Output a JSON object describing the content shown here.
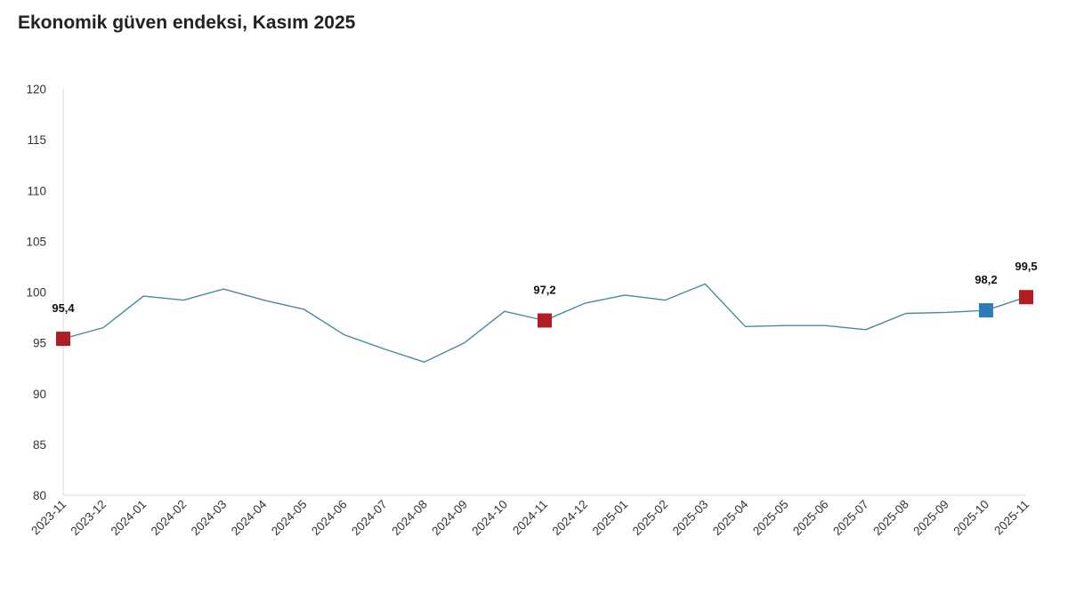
{
  "chart_data": {
    "type": "line",
    "title": "Ekonomik güven endeksi, Kasım 2025",
    "categories": [
      "2023-11",
      "2023-12",
      "2024-01",
      "2024-02",
      "2024-03",
      "2024-04",
      "2024-05",
      "2024-06",
      "2024-07",
      "2024-08",
      "2024-09",
      "2024-10",
      "2024-11",
      "2024-12",
      "2025-01",
      "2025-02",
      "2025-03",
      "2025-04",
      "2025-05",
      "2025-06",
      "2025-07",
      "2025-08",
      "2025-09",
      "2025-10",
      "2025-11"
    ],
    "series": [
      {
        "values": [
          95.4,
          96.5,
          99.6,
          99.2,
          100.3,
          99.2,
          98.3,
          95.8,
          94.4,
          93.1,
          95.0,
          98.1,
          97.2,
          98.9,
          99.7,
          99.2,
          100.8,
          96.6,
          96.7,
          96.7,
          96.3,
          97.9,
          98.0,
          98.2,
          99.5
        ]
      }
    ],
    "highlighted_points": [
      {
        "index": 0,
        "label": "95,4",
        "color": "#b01e23"
      },
      {
        "index": 12,
        "label": "97,2",
        "color": "#b01e23"
      },
      {
        "index": 23,
        "label": "98,2",
        "color": "#2e7bb8"
      },
      {
        "index": 24,
        "label": "99,5",
        "color": "#b01e23"
      }
    ],
    "ylim": [
      80,
      120
    ],
    "yticks": [
      80,
      85,
      90,
      95,
      100,
      105,
      110,
      115,
      120
    ],
    "xlabel": "",
    "ylabel": "",
    "grid": false,
    "line_color": "#4a8a9a",
    "axis_color": "#d9d9d9"
  }
}
